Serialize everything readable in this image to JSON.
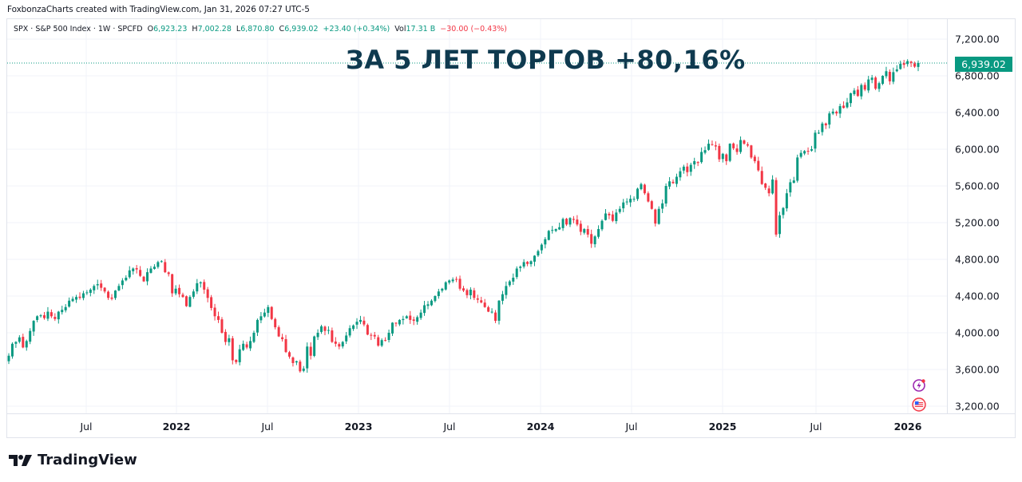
{
  "attribution": "FoxbonzaCharts created with TradingView.com, Jan 31, 2026 07:27 UTC-5",
  "legend": {
    "symbol": "SPX · S&P 500 Index · 1W · SPCFD",
    "open_label": "O",
    "open": "6,923.23",
    "high_label": "H",
    "high": "7,002.28",
    "low_label": "L",
    "low": "6,870.80",
    "close_label": "C",
    "close": "6,939.02",
    "change": "+23.40 (+0.34%)",
    "vol_label": "Vol",
    "vol": "17.31 B",
    "vol_change": "−30.00 (−0.43%)"
  },
  "headline": "ЗА 5 ЛЕТ ТОРГОВ +80,16%",
  "last_price": "6,939.02",
  "brand": "TradingView",
  "colors": {
    "up": "#089981",
    "down": "#f23645",
    "grid": "#f0f3fa",
    "headline": "#0f3a4f"
  },
  "icons": [
    "lightning-event-icon",
    "us-flag-event-icon"
  ],
  "chart_data": {
    "type": "candlestick",
    "title": "SPX · S&P 500 Index · 1W",
    "annotation": "ЗА 5 ЛЕТ ТОРГОВ +80,16%",
    "xlabel": "",
    "ylabel": "",
    "ylim": [
      3100,
      7350
    ],
    "y_ticks": [
      3200,
      3600,
      4000,
      4400,
      4800,
      5200,
      5600,
      6000,
      6400,
      6800,
      7200
    ],
    "y_tick_labels": [
      "3,200.00",
      "3,600.00",
      "4,000.00",
      "4,400.00",
      "4,800.00",
      "5,200.00",
      "5,600.00",
      "6,000.00",
      "6,400.00",
      "6,800.00",
      "7,200.00"
    ],
    "x_tick_labels": [
      "Jul",
      "2022",
      "Jul",
      "2023",
      "Jul",
      "2024",
      "Jul",
      "2025",
      "Jul",
      "2026"
    ],
    "grid": true,
    "last_close": 6939.02,
    "closes_weekly_approx": [
      3750,
      3880,
      3900,
      3950,
      3840,
      3910,
      4020,
      4130,
      4180,
      4190,
      4160,
      4230,
      4180,
      4150,
      4230,
      4250,
      4280,
      4350,
      4370,
      4390,
      4380,
      4430,
      4440,
      4470,
      4510,
      4530,
      4490,
      4450,
      4380,
      4370,
      4460,
      4510,
      4570,
      4600,
      4680,
      4700,
      4690,
      4620,
      4560,
      4660,
      4700,
      4720,
      4770,
      4780,
      4660,
      4640,
      4430,
      4480,
      4420,
      4390,
      4290,
      4390,
      4450,
      4540,
      4550,
      4470,
      4380,
      4270,
      4180,
      4140,
      4000,
      3900,
      3940,
      3700,
      3680,
      3820,
      3880,
      3840,
      3910,
      4000,
      4140,
      4180,
      4220,
      4280,
      4150,
      4060,
      3960,
      3930,
      3790,
      3740,
      3670,
      3690,
      3580,
      3610,
      3850,
      3750,
      3960,
      4000,
      4070,
      4020,
      4030,
      3900,
      3880,
      3850,
      3900,
      3970,
      4050,
      4080,
      4120,
      4140,
      4090,
      3980,
      3970,
      3960,
      3860,
      3920,
      3920,
      4000,
      4110,
      4100,
      4140,
      4150,
      4180,
      4140,
      4130,
      4170,
      4220,
      4300,
      4310,
      4350,
      4400,
      4450,
      4480,
      4550,
      4570,
      4580,
      4580,
      4480,
      4460,
      4410,
      4470,
      4380,
      4360,
      4330,
      4280,
      4230,
      4230,
      4130,
      4350,
      4420,
      4510,
      4560,
      4600,
      4700,
      4720,
      4770,
      4750,
      4780,
      4840,
      4890,
      4960,
      5020,
      5110,
      5120,
      5130,
      5150,
      5240,
      5180,
      5250,
      5230,
      5180,
      5100,
      5130,
      5070,
      4970,
      5050,
      5130,
      5220,
      5300,
      5280,
      5220,
      5310,
      5350,
      5420,
      5430,
      5460,
      5460,
      5570,
      5620,
      5520,
      5430,
      5350,
      5190,
      5350,
      5410,
      5600,
      5650,
      5630,
      5700,
      5760,
      5810,
      5750,
      5830,
      5870,
      5850,
      5970,
      5990,
      6060,
      6050,
      6030,
      5890,
      5950,
      5870,
      6060,
      6010,
      5970,
      6100,
      6060,
      6040,
      5910,
      5870,
      5770,
      5620,
      5580,
      5520,
      5670,
      5070,
      5280,
      5360,
      5520,
      5640,
      5660,
      5910,
      5960,
      5980,
      5980,
      6000,
      6180,
      6180,
      6280,
      6260,
      6390,
      6410,
      6390,
      6470,
      6450,
      6510,
      6610,
      6640,
      6580,
      6700,
      6650,
      6760,
      6780,
      6660,
      6720,
      6800,
      6850,
      6740,
      6840,
      6870,
      6930,
      6920,
      6960,
      6940,
      6900,
      6939
    ]
  }
}
